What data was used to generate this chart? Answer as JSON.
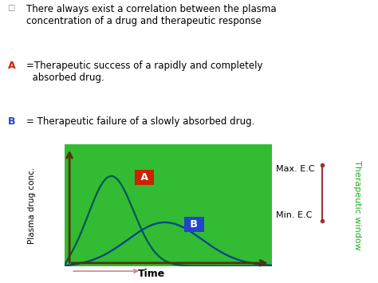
{
  "bg_color": "#33bb33",
  "curve_A_color": "#005555",
  "curve_B_color": "#004488",
  "max_ec_label": "Max. E.C",
  "min_ec_label": "Min. E.C",
  "therapeutic_label": "Therapeutic window",
  "xlabel": "Time",
  "ylabel": "Plasma drug conc.",
  "label_A_color": "#cc2200",
  "label_B_color": "#2244cc",
  "axis_color": "#553300",
  "tw_line_color": "#993333",
  "tw_text_color": "#22aa22",
  "figsize": [
    4.74,
    3.55
  ],
  "dpi": 100,
  "text_top": "There always exist a correlation between the plasma\nconcentration of a drug and therapeutic response",
  "text_A_colored": "A",
  "text_A_rest": "=Therapeutic success of a rapidly and completely\n  absorbed drug.",
  "text_B_colored": "B",
  "text_B_rest": "= Therapeutic failure of a slowly absorbed drug."
}
